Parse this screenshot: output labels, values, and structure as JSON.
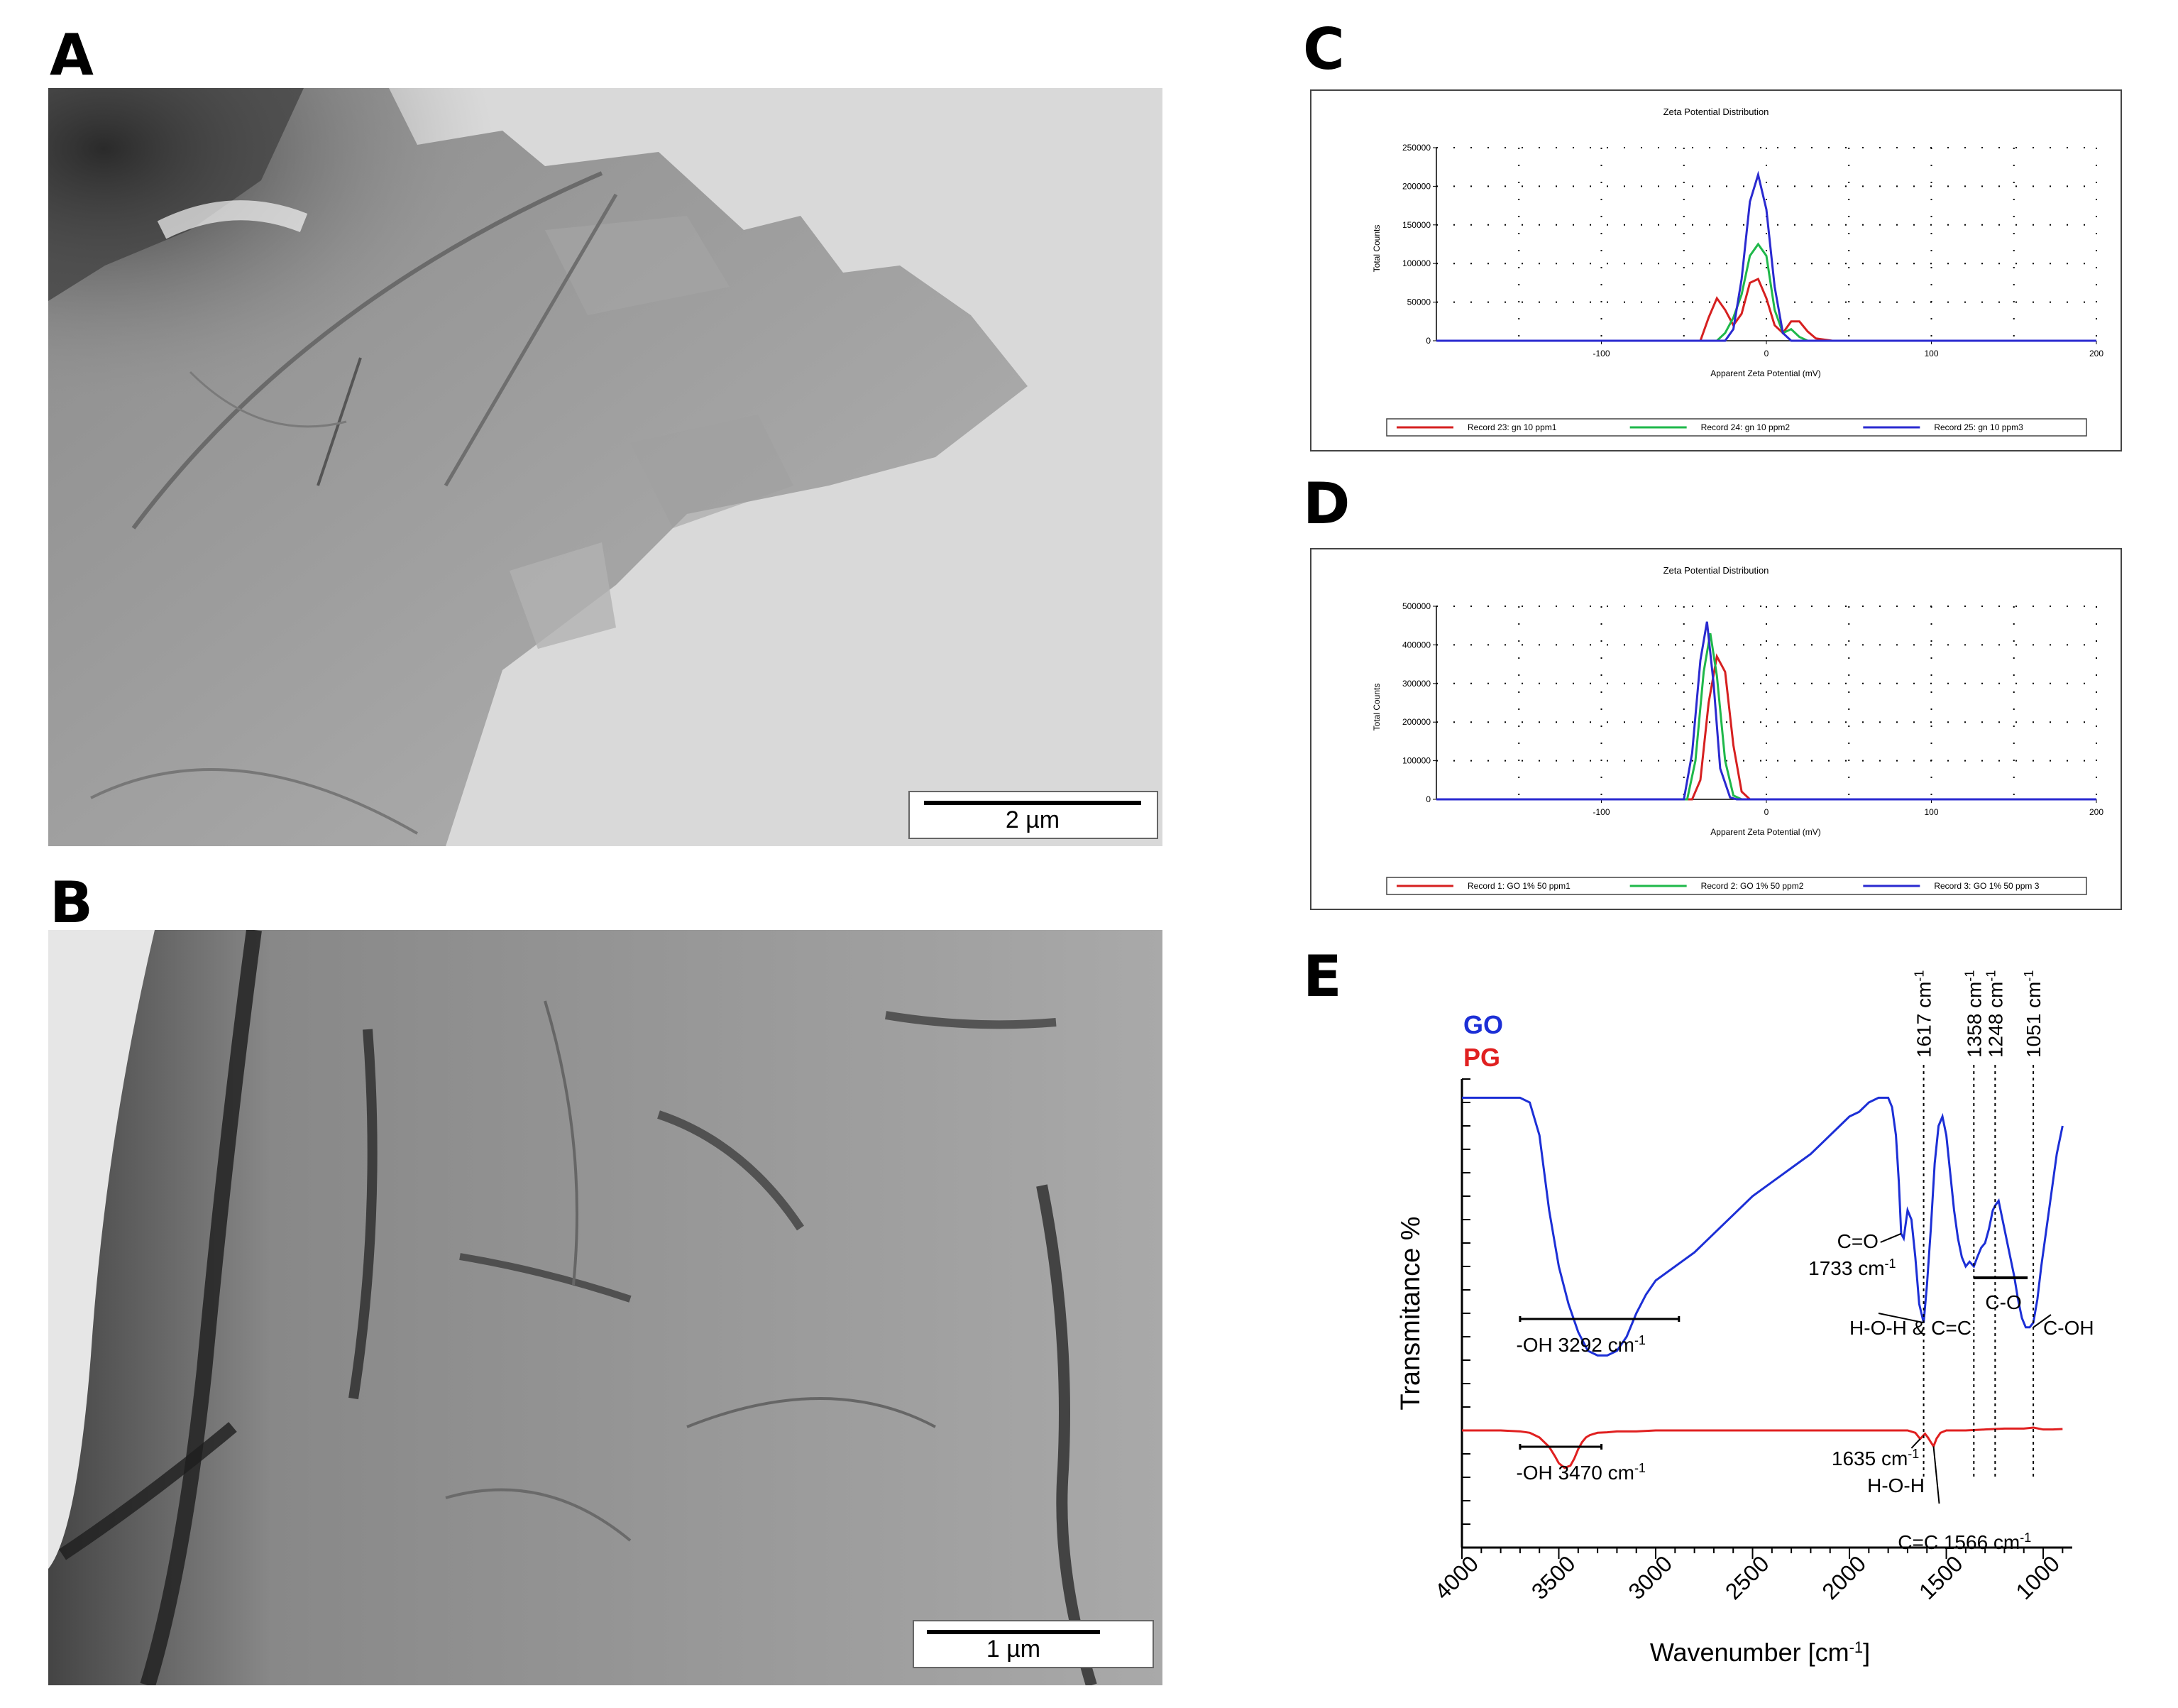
{
  "panels": {
    "A": {
      "letter": "A",
      "scale_label": "2 µm"
    },
    "B": {
      "letter": "B",
      "scale_label": "1 µm"
    },
    "C": {
      "letter": "C"
    },
    "D": {
      "letter": "D"
    },
    "E": {
      "letter": "E"
    }
  },
  "chart_data": [
    {
      "id": "C",
      "type": "line",
      "title": "Zeta Potential Distribution",
      "xlabel": "Apparent Zeta Potential (mV)",
      "ylabel": "Total Counts",
      "xlim": [
        -200,
        200
      ],
      "ylim": [
        0,
        250000
      ],
      "xticks": [
        -100,
        0,
        100,
        200
      ],
      "yticks": [
        0,
        50000,
        100000,
        150000,
        200000,
        250000
      ],
      "ytick_labels": [
        "0",
        "50000",
        "100000",
        "150000",
        "200000",
        "250000"
      ],
      "grid": true,
      "legend_position": "bottom",
      "series": [
        {
          "name": "Record 23: gn 10  ppm1",
          "color": "#d62020",
          "x": [
            -60,
            -40,
            -35,
            -30,
            -25,
            -20,
            -15,
            -10,
            -5,
            0,
            5,
            10,
            15,
            20,
            25,
            30,
            40
          ],
          "y": [
            0,
            0,
            30000,
            55000,
            40000,
            20000,
            35000,
            75000,
            80000,
            55000,
            20000,
            10000,
            25000,
            25000,
            12000,
            3000,
            0
          ]
        },
        {
          "name": "Record 24: gn 10  ppm2",
          "color": "#1fb84a",
          "x": [
            -40,
            -30,
            -25,
            -20,
            -15,
            -10,
            -5,
            0,
            5,
            10,
            15,
            20,
            25
          ],
          "y": [
            0,
            0,
            10000,
            30000,
            60000,
            110000,
            125000,
            110000,
            40000,
            10000,
            15000,
            5000,
            0
          ]
        },
        {
          "name": "Record 25: gn 10  ppm3",
          "color": "#2a2ad0",
          "x": [
            -40,
            -25,
            -20,
            -15,
            -10,
            -5,
            0,
            5,
            10,
            15,
            20
          ],
          "y": [
            0,
            0,
            15000,
            80000,
            180000,
            215000,
            170000,
            70000,
            10000,
            0,
            0
          ]
        }
      ]
    },
    {
      "id": "D",
      "type": "line",
      "title": "Zeta Potential Distribution",
      "xlabel": "Apparent Zeta Potential (mV)",
      "ylabel": "Total Counts",
      "xlim": [
        -200,
        200
      ],
      "ylim": [
        0,
        500000
      ],
      "xticks": [
        -100,
        0,
        100,
        200
      ],
      "yticks": [
        0,
        100000,
        200000,
        300000,
        400000,
        500000
      ],
      "ytick_labels": [
        "0",
        "100000",
        "200000",
        "300000",
        "400000",
        "500000"
      ],
      "grid": true,
      "legend_position": "bottom",
      "series": [
        {
          "name": "Record 1: GO 1% 50 ppm1",
          "color": "#d62020",
          "x": [
            -60,
            -45,
            -40,
            -35,
            -30,
            -25,
            -20,
            -15,
            -10
          ],
          "y": [
            0,
            0,
            50000,
            250000,
            370000,
            330000,
            140000,
            20000,
            0
          ]
        },
        {
          "name": "Record 2: GO 1% 50 ppm2",
          "color": "#1fb84a",
          "x": [
            -60,
            -48,
            -43,
            -38,
            -34,
            -30,
            -25,
            -20,
            -15
          ],
          "y": [
            0,
            0,
            100000,
            330000,
            430000,
            320000,
            100000,
            10000,
            0
          ]
        },
        {
          "name": "Record 3: GO 1% 50 ppm 3",
          "color": "#2a2ad0",
          "x": [
            -60,
            -50,
            -45,
            -40,
            -36,
            -32,
            -28,
            -22,
            -18
          ],
          "y": [
            0,
            0,
            120000,
            360000,
            460000,
            300000,
            80000,
            5000,
            0
          ]
        }
      ]
    },
    {
      "id": "E",
      "type": "line",
      "xlabel": "Wavenumber [cm",
      "xlabel_sup": "-1",
      "xlabel_end": "]",
      "ylabel": "Transmitance %",
      "xlim": [
        4000,
        850
      ],
      "xticks": [
        4000,
        3500,
        3000,
        2500,
        2000,
        1500,
        1000
      ],
      "ylim": [
        0,
        100
      ],
      "series": [
        {
          "name": "GO",
          "color": "#1c2fd6",
          "x": [
            4000,
            3800,
            3700,
            3650,
            3600,
            3550,
            3500,
            3450,
            3400,
            3350,
            3300,
            3250,
            3200,
            3150,
            3100,
            3050,
            3000,
            2900,
            2800,
            2700,
            2600,
            2500,
            2400,
            2300,
            2200,
            2150,
            2100,
            2050,
            2000,
            1950,
            1900,
            1850,
            1800,
            1780,
            1760,
            1745,
            1733,
            1720,
            1700,
            1680,
            1660,
            1640,
            1617,
            1600,
            1580,
            1560,
            1540,
            1520,
            1500,
            1480,
            1460,
            1440,
            1420,
            1400,
            1380,
            1358,
            1340,
            1320,
            1300,
            1280,
            1260,
            1248,
            1230,
            1210,
            1190,
            1170,
            1150,
            1130,
            1110,
            1090,
            1070,
            1051,
            1030,
            1010,
            990,
            970,
            950,
            930,
            910,
            900
          ],
          "y": [
            96,
            96,
            96,
            95,
            88,
            72,
            60,
            52,
            46,
            42,
            41,
            41,
            42,
            45,
            50,
            54,
            57,
            60,
            63,
            67,
            71,
            75,
            78,
            81,
            84,
            86,
            88,
            90,
            92,
            93,
            95,
            96,
            96,
            94,
            88,
            78,
            67,
            66,
            72,
            70,
            62,
            52,
            48,
            56,
            68,
            82,
            90,
            92,
            88,
            80,
            72,
            66,
            62,
            60,
            61,
            60,
            62,
            64,
            65,
            68,
            72,
            73,
            74,
            70,
            66,
            62,
            58,
            53,
            49,
            47,
            47,
            48,
            53,
            60,
            66,
            72,
            78,
            84,
            88,
            90
          ]
        },
        {
          "name": "PG",
          "color": "#e02020",
          "x": [
            4000,
            3800,
            3700,
            3650,
            3600,
            3550,
            3520,
            3500,
            3470,
            3440,
            3420,
            3400,
            3380,
            3360,
            3340,
            3300,
            3250,
            3200,
            3100,
            3000,
            2800,
            2600,
            2400,
            2200,
            2000,
            1800,
            1700,
            1660,
            1635,
            1610,
            1595,
            1580,
            1566,
            1550,
            1530,
            1500,
            1400,
            1300,
            1200,
            1100,
            1050,
            1000,
            950,
            900
          ],
          "y": [
            25,
            25,
            24.8,
            24.5,
            23.5,
            21.5,
            19.5,
            18,
            17,
            17.5,
            19,
            21,
            22.5,
            23.5,
            24,
            24.5,
            24.6,
            24.8,
            24.8,
            25,
            25,
            25,
            25,
            25,
            25,
            25,
            25,
            24.5,
            23.2,
            24.3,
            23.5,
            22.5,
            21.6,
            23.3,
            24.5,
            25,
            25,
            25.2,
            25.4,
            25.4,
            25.6,
            25.2,
            25.2,
            25.3
          ]
        }
      ],
      "legend": [
        {
          "label": "GO",
          "color": "#1c2fd6"
        },
        {
          "label": "PG",
          "color": "#e02020"
        }
      ],
      "vertical_markers": [
        {
          "x": 1617,
          "label": "1617 cm",
          "sup": "-1"
        },
        {
          "x": 1358,
          "label": "1358 cm",
          "sup": "-1"
        },
        {
          "x": 1248,
          "label": "1248 cm",
          "sup": "-1"
        },
        {
          "x": 1051,
          "label": "1051 cm",
          "sup": "-1"
        }
      ],
      "annotations": {
        "oh_go": {
          "text": "-OH 3292 cm",
          "sup": "-1"
        },
        "oh_pg": {
          "text": "-OH 3470 cm",
          "sup": "-1"
        },
        "co_line1": "C=O",
        "co_line2": "1733 cm",
        "co_sup": "-1",
        "hoh_cc": "H-O-H & C=C",
        "c_o": "C-O",
        "c_oh": "C-OH",
        "pg_1635_line1": "1635 cm",
        "pg_1635_sup": "-1",
        "pg_1635_line2": "H-O-H",
        "cc_1566": "C=C 1566 cm",
        "cc_1566_sup": "-1"
      }
    }
  ]
}
